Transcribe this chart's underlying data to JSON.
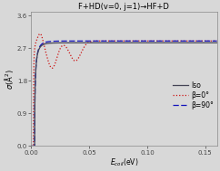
{
  "title": "F+HD(v=0, j=1)→HF+D",
  "xlabel": "$E_{coll}$(eV)",
  "ylabel": "$\\sigma$(Å$^2$)",
  "xlim": [
    0.0,
    0.16
  ],
  "ylim": [
    0.0,
    3.7
  ],
  "yticks": [
    0.0,
    0.9,
    1.8,
    2.7,
    3.6
  ],
  "xticks": [
    0.0,
    0.05,
    0.1,
    0.15
  ],
  "background_color": "#d8d8d8",
  "plot_bg_color": "#d8d8d8",
  "legend_labels": [
    "Iso",
    "β=0°",
    "β=90°"
  ],
  "iso_color": "#444455",
  "beta0_color": "#cc1111",
  "beta90_color": "#1111bb"
}
